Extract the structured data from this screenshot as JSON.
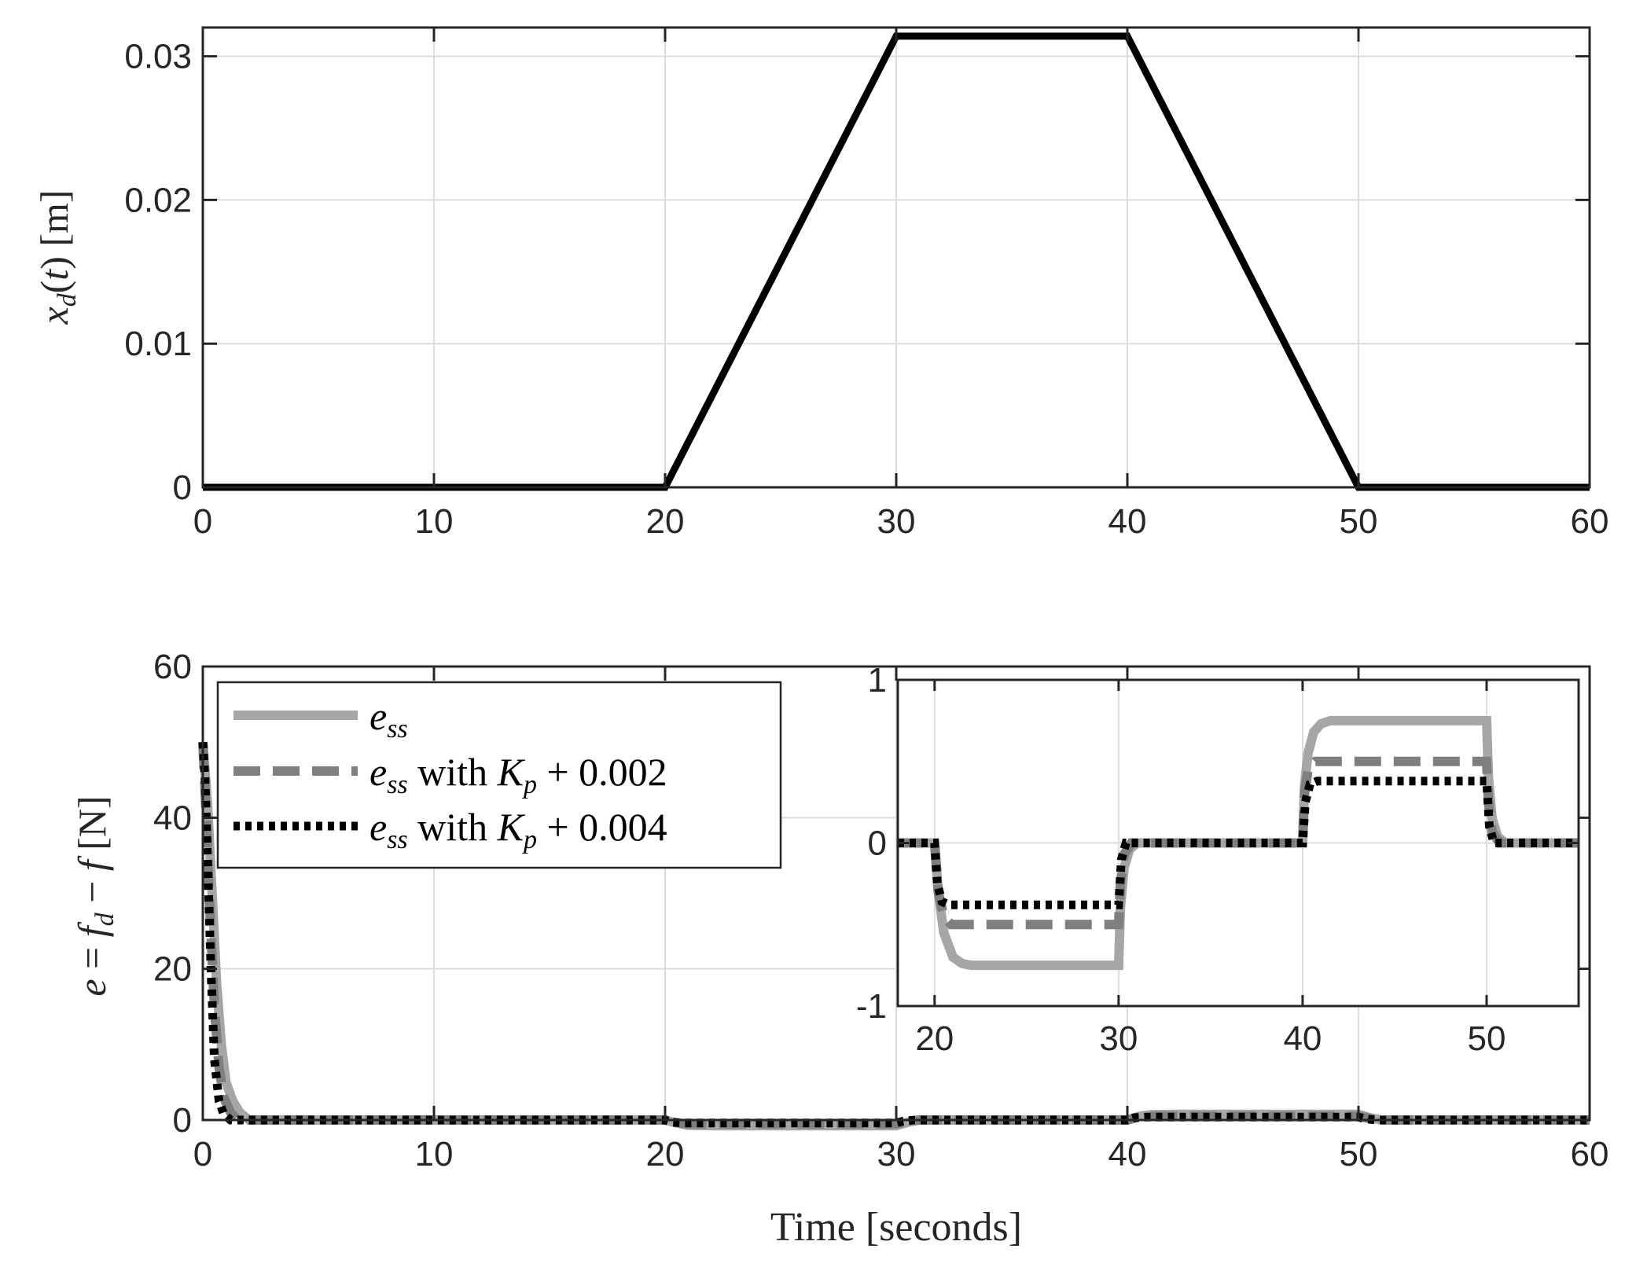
{
  "chart_data": [
    {
      "type": "line",
      "xlim": [
        0,
        60
      ],
      "ylim": [
        0,
        0.032
      ],
      "xticks": [
        "0",
        "10",
        "20",
        "30",
        "40",
        "50",
        "60"
      ],
      "yticks": [
        "0",
        "0.01",
        "0.02",
        "0.03"
      ],
      "ylabel_parts": [
        "x",
        "d",
        "(",
        "t",
        ") [m]"
      ],
      "grid": true,
      "series": [
        {
          "color": "#000000",
          "style": "solid",
          "x": [
            0,
            20,
            30,
            40,
            50,
            60
          ],
          "y": [
            0,
            0,
            0.0314,
            0.0314,
            0,
            0
          ]
        }
      ]
    },
    {
      "type": "line",
      "xlim": [
        0,
        60
      ],
      "ylim": [
        0,
        60
      ],
      "xticks": [
        "0",
        "10",
        "20",
        "30",
        "40",
        "50",
        "60"
      ],
      "yticks": [
        "0",
        "20",
        "40",
        "60"
      ],
      "xlabel": "Time [seconds]",
      "ylabel_parts": [
        "e",
        " = ",
        "f",
        "d",
        " − ",
        "f",
        " [N]"
      ],
      "grid": true,
      "legend_position": "top-left",
      "legend": [
        {
          "sym": "e",
          "sub": "ss",
          "text": "",
          "gain": "",
          "gain_sub": "",
          "value": ""
        },
        {
          "sym": "e",
          "sub": "ss",
          "text": " with ",
          "gain": "K",
          "gain_sub": "p",
          "value": " + 0.002"
        },
        {
          "sym": "e",
          "sub": "ss",
          "text": " with ",
          "gain": "K",
          "gain_sub": "p",
          "value": " + 0.004"
        }
      ],
      "series": [
        {
          "color": "#a6a6a6",
          "style": "solid",
          "x": [
            0,
            0.2,
            0.4,
            0.6,
            0.8,
            1.0,
            1.3,
            1.6,
            2.0,
            20,
            20.5,
            21,
            22,
            30,
            30.5,
            31,
            40,
            40.5,
            41,
            42,
            50,
            50.5,
            51,
            60
          ],
          "y": [
            50,
            42,
            30,
            18,
            10,
            5,
            2.5,
            1,
            0,
            0,
            -0.4,
            -0.7,
            -0.75,
            -0.75,
            -0.3,
            0,
            0,
            0.5,
            0.7,
            0.75,
            0.75,
            0.3,
            0,
            0
          ]
        },
        {
          "color": "#7f7f7f",
          "style": "dashed",
          "x": [
            0,
            0.15,
            0.3,
            0.5,
            0.7,
            0.9,
            1.2,
            1.5,
            20,
            20.5,
            21,
            30,
            30.5,
            31,
            40,
            40.5,
            41,
            50,
            50.5,
            51,
            60
          ],
          "y": [
            50,
            40,
            28,
            15,
            7,
            3,
            1,
            0,
            0,
            -0.4,
            -0.5,
            -0.5,
            -0.2,
            0,
            0,
            0.4,
            0.5,
            0.5,
            0.2,
            0,
            0
          ]
        },
        {
          "color": "#000000",
          "style": "dotted",
          "x": [
            0,
            0.1,
            0.2,
            0.35,
            0.5,
            0.7,
            0.9,
            1.2,
            20,
            20.3,
            20.8,
            30,
            30.3,
            30.8,
            40,
            40.3,
            40.8,
            50,
            50.3,
            50.8,
            60
          ],
          "y": [
            50,
            45,
            35,
            20,
            8,
            2.5,
            0.8,
            0,
            0,
            -0.3,
            -0.38,
            -0.38,
            -0.15,
            0,
            0,
            0.3,
            0.38,
            0.38,
            0.15,
            0,
            0
          ]
        }
      ]
    },
    {
      "type": "line",
      "role": "inset",
      "xlim": [
        18,
        55
      ],
      "ylim": [
        -1,
        1
      ],
      "xticks": [
        "20",
        "30",
        "40",
        "50"
      ],
      "yticks": [
        "-1",
        "0",
        "1"
      ],
      "grid": true,
      "series": [
        {
          "color": "#a6a6a6",
          "style": "solid",
          "x": [
            18,
            20,
            20.2,
            20.5,
            21,
            21.5,
            22,
            30,
            30.1,
            30.3,
            30.6,
            31,
            40,
            40.1,
            40.3,
            40.6,
            41,
            41.5,
            42,
            50,
            50.1,
            50.3,
            50.6,
            51,
            55
          ],
          "y": [
            0,
            0,
            -0.3,
            -0.55,
            -0.7,
            -0.74,
            -0.75,
            -0.75,
            -0.4,
            -0.15,
            -0.04,
            0,
            0,
            0.35,
            0.55,
            0.68,
            0.73,
            0.75,
            0.75,
            0.75,
            0.4,
            0.15,
            0.04,
            0,
            0
          ]
        },
        {
          "color": "#7f7f7f",
          "style": "dashed",
          "x": [
            18,
            20,
            20.2,
            20.5,
            20.9,
            21.3,
            30,
            30.1,
            30.3,
            30.7,
            40,
            40.1,
            40.3,
            40.7,
            41.1,
            50,
            50.1,
            50.3,
            50.7,
            55
          ],
          "y": [
            0,
            0,
            -0.3,
            -0.45,
            -0.5,
            -0.5,
            -0.5,
            -0.25,
            -0.07,
            0,
            0,
            0.3,
            0.45,
            0.5,
            0.5,
            0.5,
            0.25,
            0.07,
            0,
            0
          ]
        },
        {
          "color": "#000000",
          "style": "dotted",
          "x": [
            18,
            20,
            20.15,
            20.4,
            20.8,
            30,
            30.15,
            30.4,
            40,
            40.15,
            40.4,
            40.8,
            50,
            50.15,
            50.4,
            55
          ],
          "y": [
            0,
            0,
            -0.25,
            -0.36,
            -0.38,
            -0.38,
            -0.1,
            0,
            0,
            0.25,
            0.36,
            0.38,
            0.38,
            0.1,
            0,
            0
          ]
        }
      ]
    }
  ]
}
